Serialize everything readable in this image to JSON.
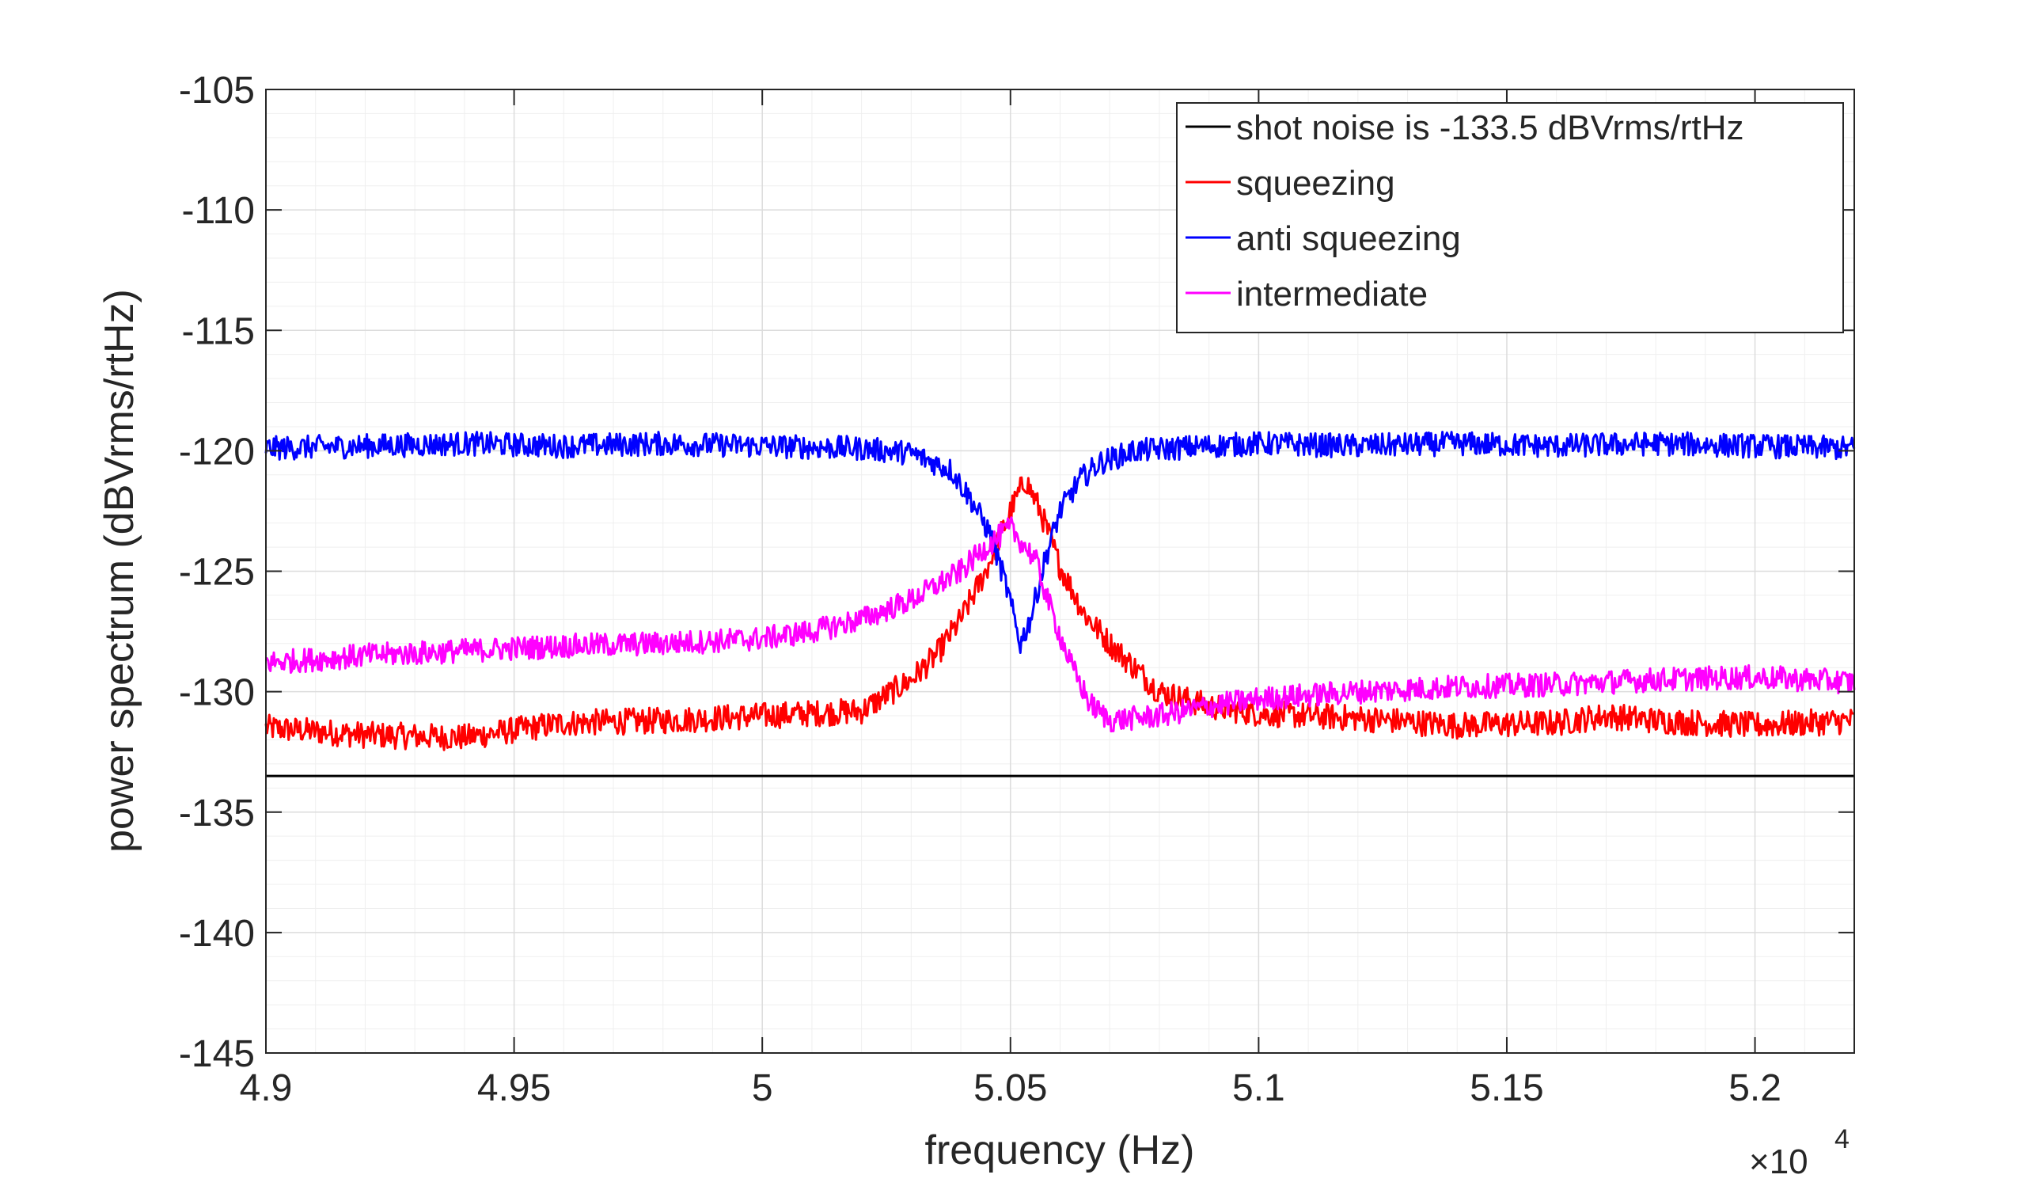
{
  "chart_data": {
    "type": "line",
    "xlabel": "frequency (Hz)",
    "ylabel": "power spectrum (dBVrms/rtHz)",
    "x_exponent_label": "×10",
    "x_exponent_power": "4",
    "xlim": [
      4.9,
      5.22
    ],
    "ylim": [
      -145,
      -105
    ],
    "x_scale_factor": 10000,
    "grid": true,
    "legend_position": "top-right",
    "xticks": [
      4.9,
      4.95,
      5.0,
      5.05,
      5.1,
      5.15,
      5.2
    ],
    "xtick_labels": [
      "4.9",
      "4.95",
      "5",
      "5.05",
      "5.1",
      "5.15",
      "5.2"
    ],
    "yticks": [
      -105,
      -110,
      -115,
      -120,
      -125,
      -130,
      -135,
      -140,
      -145
    ],
    "ytick_labels": [
      "-105",
      "-110",
      "-115",
      "-120",
      "-125",
      "-130",
      "-135",
      "-140",
      "-145"
    ],
    "series": [
      {
        "name": "shot noise is -133.5 dBVrms/rtHz",
        "color": "#000000",
        "x": [
          4.9,
          5.22
        ],
        "y": [
          -133.5,
          -133.5
        ]
      },
      {
        "name": "squeezing",
        "color": "#ff0000",
        "x": [
          4.9,
          4.92,
          4.94,
          4.96,
          4.98,
          5.0,
          5.02,
          5.03,
          5.035,
          5.04,
          5.045,
          5.05,
          5.053,
          5.056,
          5.06,
          5.065,
          5.07,
          5.075,
          5.08,
          5.09,
          5.1,
          5.12,
          5.14,
          5.16,
          5.17,
          5.18,
          5.2,
          5.22
        ],
        "y": [
          -131.5,
          -131.8,
          -131.9,
          -131.3,
          -131.2,
          -131.0,
          -130.8,
          -129.5,
          -128.5,
          -127.0,
          -125.0,
          -122.5,
          -121.2,
          -122.5,
          -124.8,
          -126.8,
          -128.0,
          -129.0,
          -130.0,
          -130.6,
          -130.9,
          -131.1,
          -131.4,
          -131.3,
          -131.0,
          -131.2,
          -131.4,
          -131.2
        ]
      },
      {
        "name": "anti squeezing",
        "color": "#0000ff",
        "x": [
          4.9,
          4.92,
          4.94,
          4.96,
          4.98,
          5.0,
          5.02,
          5.03,
          5.038,
          5.042,
          5.046,
          5.049,
          5.052,
          5.054,
          5.057,
          5.06,
          5.064,
          5.068,
          5.075,
          5.09,
          5.1,
          5.12,
          5.14,
          5.16,
          5.18,
          5.2,
          5.22
        ],
        "y": [
          -119.9,
          -119.8,
          -119.7,
          -119.8,
          -119.7,
          -119.8,
          -119.9,
          -120.1,
          -120.8,
          -122.0,
          -123.5,
          -125.5,
          -128.0,
          -127.0,
          -124.5,
          -122.5,
          -121.2,
          -120.5,
          -120.0,
          -119.8,
          -119.7,
          -119.8,
          -119.7,
          -119.8,
          -119.7,
          -119.8,
          -119.9
        ]
      },
      {
        "name": "intermediate",
        "color": "#ff00ff",
        "x": [
          4.9,
          4.92,
          4.94,
          4.96,
          4.98,
          5.0,
          5.01,
          5.02,
          5.03,
          5.04,
          5.045,
          5.05,
          5.055,
          5.058,
          5.062,
          5.066,
          5.07,
          5.08,
          5.09,
          5.1,
          5.12,
          5.14,
          5.16,
          5.18,
          5.2,
          5.22
        ],
        "y": [
          -128.8,
          -128.5,
          -128.3,
          -128.1,
          -128.0,
          -127.8,
          -127.5,
          -127.0,
          -126.2,
          -125.0,
          -124.0,
          -123.2,
          -124.5,
          -126.5,
          -128.8,
          -130.5,
          -131.2,
          -131.0,
          -130.6,
          -130.3,
          -130.0,
          -129.8,
          -129.7,
          -129.5,
          -129.4,
          -129.6
        ]
      }
    ]
  }
}
